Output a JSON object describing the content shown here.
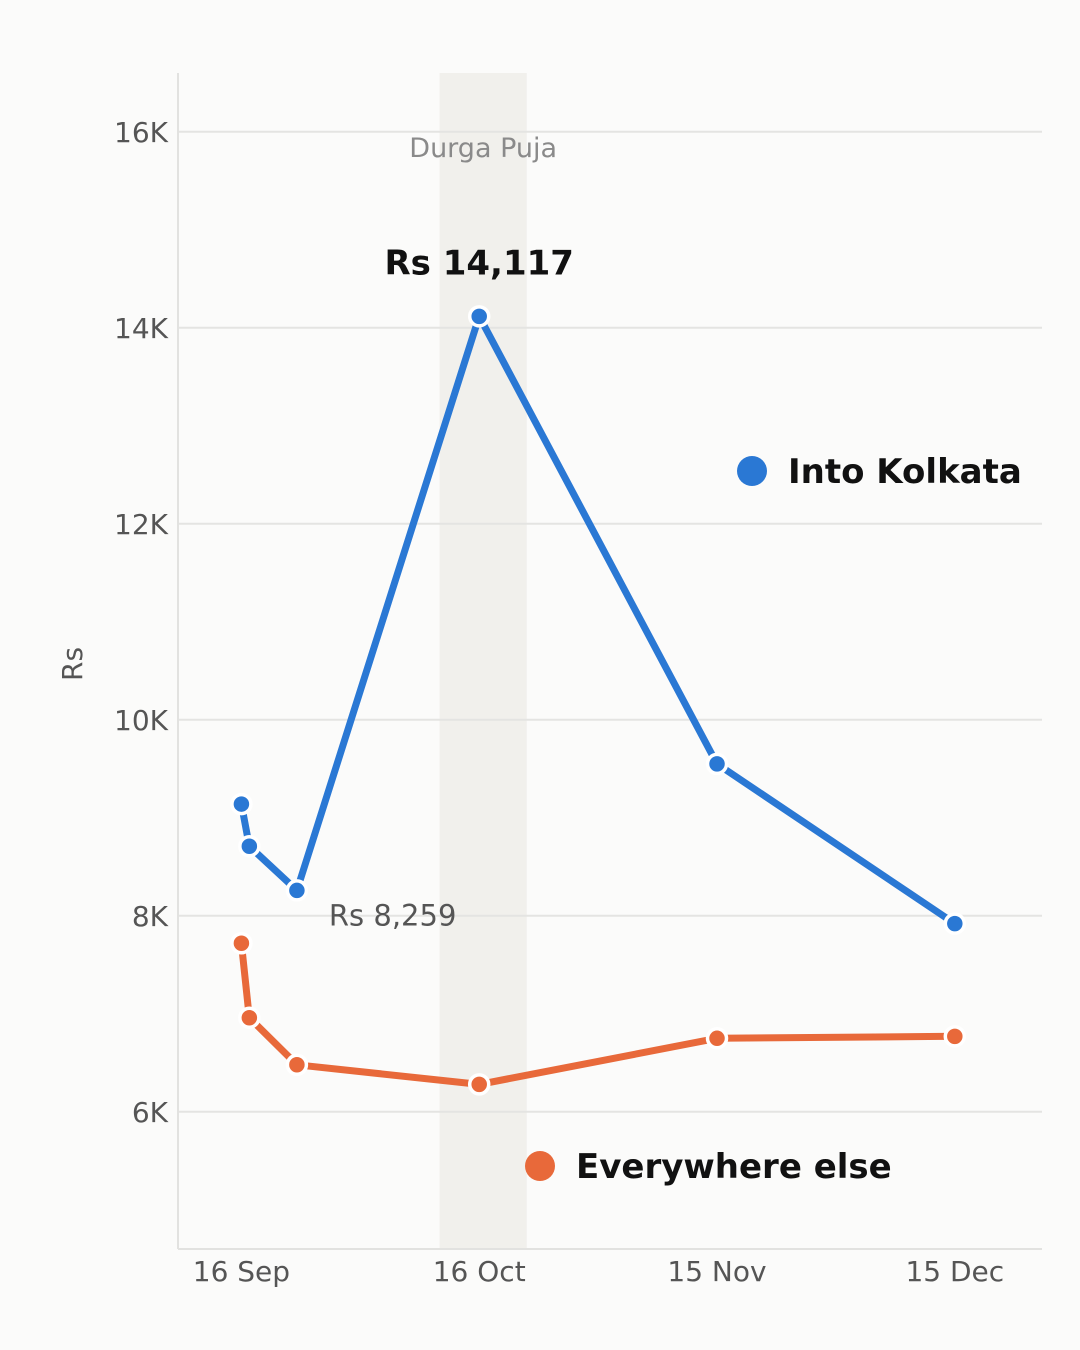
{
  "chart_data": {
    "type": "line",
    "title": "",
    "xlabel": "",
    "ylabel": "Rs",
    "x_ticks": [
      {
        "date": "2024-09-16",
        "label": "16 Sep"
      },
      {
        "date": "2024-10-16",
        "label": "16 Oct"
      },
      {
        "date": "2024-11-15",
        "label": "15 Nov"
      },
      {
        "date": "2024-12-15",
        "label": "15 Dec"
      }
    ],
    "xlim": [
      "2024-09-08",
      "2024-12-26"
    ],
    "y_ticks": [
      {
        "value": 6000,
        "label": "6K"
      },
      {
        "value": 8000,
        "label": "8K"
      },
      {
        "value": 10000,
        "label": "10K"
      },
      {
        "value": 12000,
        "label": "12K"
      },
      {
        "value": 14000,
        "label": "14K"
      },
      {
        "value": 16000,
        "label": "16K"
      }
    ],
    "ylim": [
      4600,
      16600
    ],
    "grid": "horizontal",
    "highlight_band": {
      "start": "2024-10-11",
      "end": "2024-10-22",
      "label": "Durga Puja",
      "color": "#f1f0ec"
    },
    "series": [
      {
        "name": "Into Kolkata",
        "color": "#2a78d4",
        "points": [
          {
            "x": "2024-09-16",
            "y": 9140
          },
          {
            "x": "2024-09-17",
            "y": 8710
          },
          {
            "x": "2024-09-23",
            "y": 8259
          },
          {
            "x": "2024-10-16",
            "y": 14117
          },
          {
            "x": "2024-11-15",
            "y": 9550
          },
          {
            "x": "2024-12-15",
            "y": 7920
          }
        ]
      },
      {
        "name": "Everywhere else",
        "color": "#e8693a",
        "points": [
          {
            "x": "2024-09-16",
            "y": 7720
          },
          {
            "x": "2024-09-17",
            "y": 6960
          },
          {
            "x": "2024-09-23",
            "y": 6480
          },
          {
            "x": "2024-10-16",
            "y": 6280
          },
          {
            "x": "2024-11-15",
            "y": 6750
          },
          {
            "x": "2024-12-15",
            "y": 6770
          }
        ]
      }
    ],
    "annotations": [
      {
        "series": "Into Kolkata",
        "x": "2024-10-16",
        "text": "Rs 14,117",
        "style": "bold"
      },
      {
        "series": "Into Kolkata",
        "x": "2024-09-23",
        "text": "Rs 8,259",
        "style": "regular"
      }
    ],
    "legend_entries": [
      {
        "text": "Into Kolkata",
        "color": "#2a78d4"
      },
      {
        "text": "Everywhere else",
        "color": "#e8693a"
      }
    ],
    "legend_placement": "inline-right"
  }
}
